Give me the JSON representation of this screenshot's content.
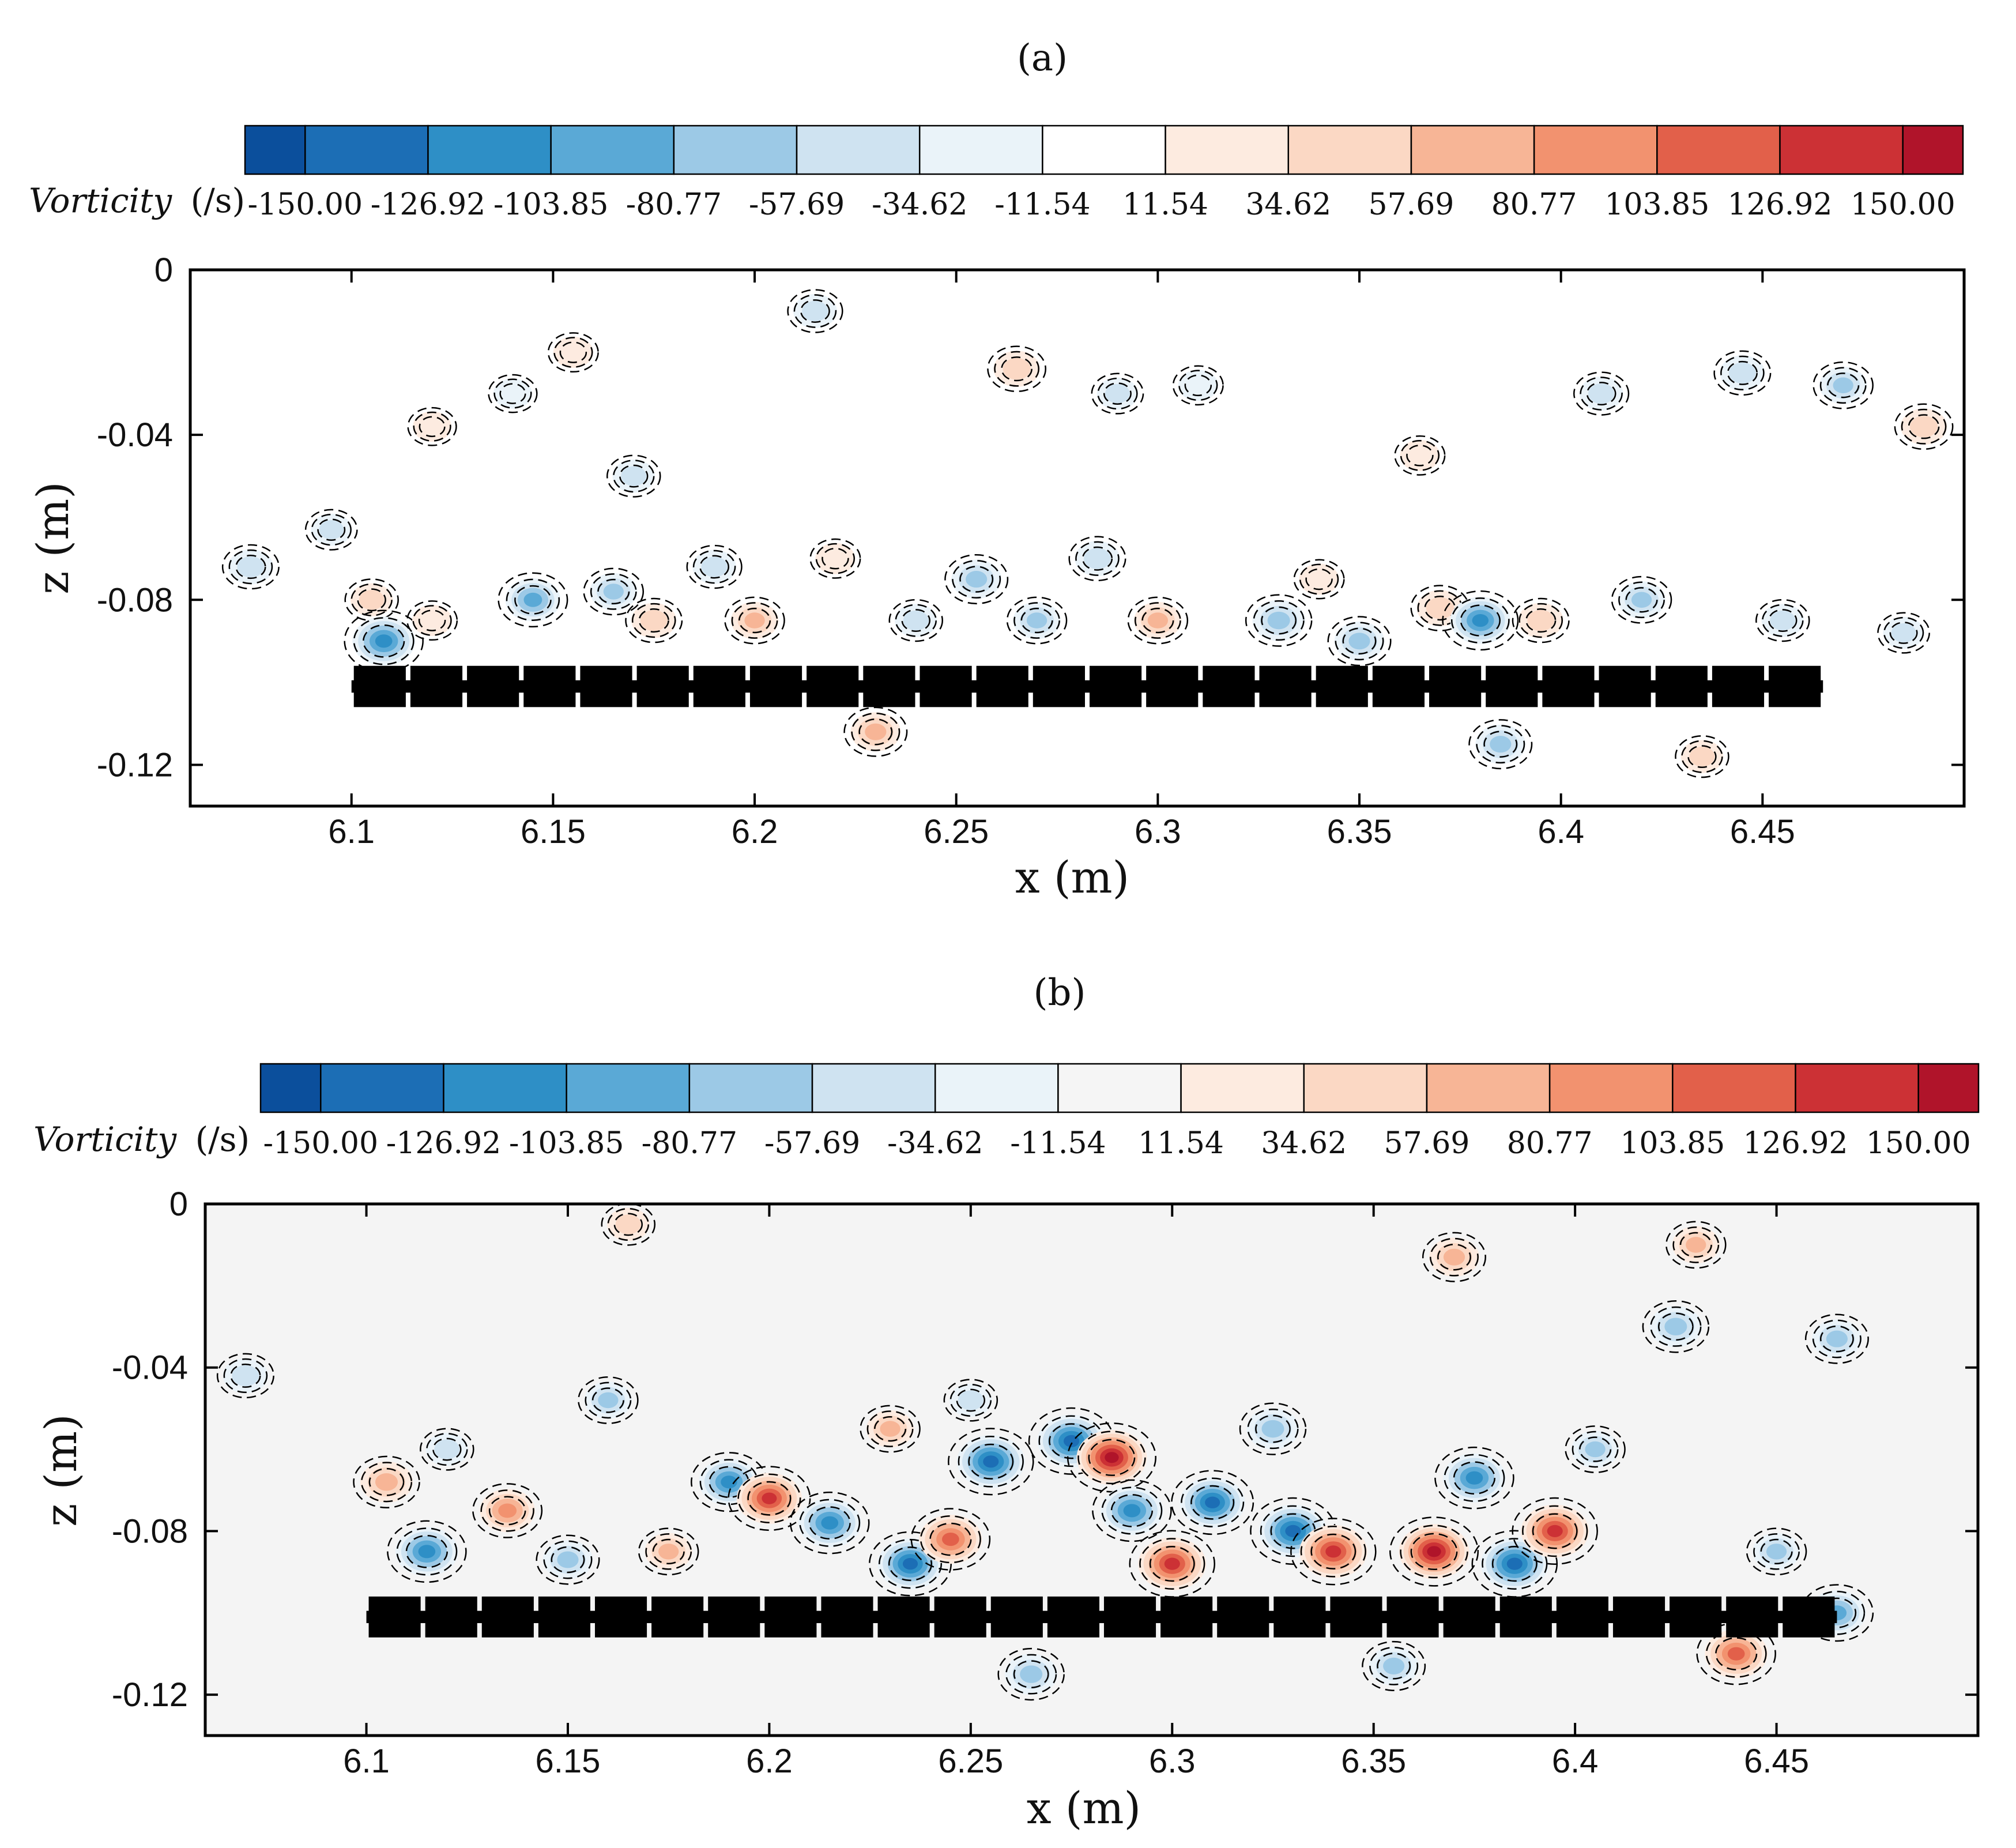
{
  "chart_data": [
    {
      "type": "heatmap",
      "panel_label": "(a)",
      "colorbar": {
        "title": "Vorticity",
        "unit": "(/s)",
        "levels": [
          "-150.00",
          "-126.92",
          "-103.85",
          "-80.77",
          "-57.69",
          "-34.62",
          "-11.54",
          "11.54",
          "34.62",
          "57.69",
          "80.77",
          "103.85",
          "126.92",
          "150.00"
        ],
        "colors": [
          "#0b4f9c",
          "#1c6eb5",
          "#2e8fc6",
          "#5aa9d6",
          "#9cc9e6",
          "#cfe3f1",
          "#eaf3f9",
          "#ffffff",
          "#fdebe0",
          "#fbd8c4",
          "#f7b596",
          "#f2926f",
          "#e2604a",
          "#cc3135",
          "#b0142a"
        ]
      },
      "xlabel": "x (m)",
      "ylabel": "z (m)",
      "xlim": [
        6.06,
        6.5
      ],
      "ylim": [
        -0.13,
        0
      ],
      "xticks": [
        "6.1",
        "6.15",
        "6.2",
        "6.25",
        "6.3",
        "6.35",
        "6.4",
        "6.45"
      ],
      "yticks": [
        "0",
        "-0.04",
        "-0.08",
        "-0.12"
      ],
      "structure": {
        "x_start": 6.1,
        "x_end": 6.465,
        "z_top": -0.096,
        "z_bottom": -0.106
      },
      "vortices": [
        {
          "x": 6.075,
          "z": -0.072,
          "v": -50
        },
        {
          "x": 6.095,
          "z": -0.063,
          "v": -35
        },
        {
          "x": 6.105,
          "z": -0.08,
          "v": 40
        },
        {
          "x": 6.108,
          "z": -0.09,
          "v": -120
        },
        {
          "x": 6.12,
          "z": -0.038,
          "v": 25
        },
        {
          "x": 6.12,
          "z": -0.085,
          "v": 30
        },
        {
          "x": 6.14,
          "z": -0.03,
          "v": -25
        },
        {
          "x": 6.145,
          "z": -0.08,
          "v": -90
        },
        {
          "x": 6.155,
          "z": -0.02,
          "v": 30
        },
        {
          "x": 6.165,
          "z": -0.078,
          "v": -60
        },
        {
          "x": 6.17,
          "z": -0.05,
          "v": -40
        },
        {
          "x": 6.175,
          "z": -0.085,
          "v": 50
        },
        {
          "x": 6.19,
          "z": -0.072,
          "v": -45
        },
        {
          "x": 6.2,
          "z": -0.085,
          "v": 60
        },
        {
          "x": 6.215,
          "z": -0.01,
          "v": -45
        },
        {
          "x": 6.22,
          "z": -0.07,
          "v": 30
        },
        {
          "x": 6.23,
          "z": -0.112,
          "v": 70
        },
        {
          "x": 6.24,
          "z": -0.085,
          "v": -40
        },
        {
          "x": 6.255,
          "z": -0.075,
          "v": -70
        },
        {
          "x": 6.265,
          "z": -0.024,
          "v": 55
        },
        {
          "x": 6.27,
          "z": -0.085,
          "v": -60
        },
        {
          "x": 6.285,
          "z": -0.07,
          "v": -50
        },
        {
          "x": 6.29,
          "z": -0.03,
          "v": -35
        },
        {
          "x": 6.3,
          "z": -0.085,
          "v": 60
        },
        {
          "x": 6.31,
          "z": -0.028,
          "v": -30
        },
        {
          "x": 6.33,
          "z": -0.085,
          "v": -80
        },
        {
          "x": 6.34,
          "z": -0.075,
          "v": 30
        },
        {
          "x": 6.35,
          "z": -0.09,
          "v": -70
        },
        {
          "x": 6.365,
          "z": -0.045,
          "v": 30
        },
        {
          "x": 6.37,
          "z": -0.082,
          "v": 55
        },
        {
          "x": 6.38,
          "z": -0.085,
          "v": -110
        },
        {
          "x": 6.385,
          "z": -0.115,
          "v": -70
        },
        {
          "x": 6.395,
          "z": -0.085,
          "v": 50
        },
        {
          "x": 6.41,
          "z": -0.03,
          "v": -45
        },
        {
          "x": 6.42,
          "z": -0.08,
          "v": -60
        },
        {
          "x": 6.435,
          "z": -0.118,
          "v": 40
        },
        {
          "x": 6.445,
          "z": -0.025,
          "v": -50
        },
        {
          "x": 6.455,
          "z": -0.085,
          "v": -40
        },
        {
          "x": 6.47,
          "z": -0.028,
          "v": -60
        },
        {
          "x": 6.485,
          "z": -0.088,
          "v": -35
        },
        {
          "x": 6.49,
          "z": -0.038,
          "v": 55
        }
      ]
    },
    {
      "type": "heatmap",
      "panel_label": "(b)",
      "colorbar": {
        "title": "Vorticity",
        "unit": "(/s)",
        "levels": [
          "-150.00",
          "-126.92",
          "-103.85",
          "-80.77",
          "-57.69",
          "-34.62",
          "-11.54",
          "11.54",
          "34.62",
          "57.69",
          "80.77",
          "103.85",
          "126.92",
          "150.00"
        ],
        "colors": [
          "#0b4f9c",
          "#1c6eb5",
          "#2e8fc6",
          "#5aa9d6",
          "#9cc9e6",
          "#cfe3f1",
          "#eaf3f9",
          "#f5f5f5",
          "#fdebe0",
          "#fbd8c4",
          "#f7b596",
          "#f2926f",
          "#e2604a",
          "#cc3135",
          "#b0142a"
        ]
      },
      "xlabel": "x (m)",
      "ylabel": "z (m)",
      "xlim": [
        6.06,
        6.5
      ],
      "ylim": [
        -0.13,
        0
      ],
      "xticks": [
        "6.1",
        "6.15",
        "6.2",
        "6.25",
        "6.3",
        "6.35",
        "6.4",
        "6.45"
      ],
      "yticks": [
        "0",
        "-0.04",
        "-0.08",
        "-0.12"
      ],
      "structure": {
        "x_start": 6.1,
        "x_end": 6.465,
        "z_top": -0.096,
        "z_bottom": -0.106
      },
      "vortices": [
        {
          "x": 6.07,
          "z": -0.042,
          "v": -50
        },
        {
          "x": 6.105,
          "z": -0.068,
          "v": 80
        },
        {
          "x": 6.115,
          "z": -0.085,
          "v": -120
        },
        {
          "x": 6.12,
          "z": -0.06,
          "v": -40
        },
        {
          "x": 6.135,
          "z": -0.075,
          "v": 90
        },
        {
          "x": 6.15,
          "z": -0.087,
          "v": -70
        },
        {
          "x": 6.16,
          "z": -0.048,
          "v": -60
        },
        {
          "x": 6.165,
          "z": -0.005,
          "v": 40
        },
        {
          "x": 6.175,
          "z": -0.085,
          "v": 60
        },
        {
          "x": 6.19,
          "z": -0.068,
          "v": -110
        },
        {
          "x": 6.2,
          "z": -0.072,
          "v": 130
        },
        {
          "x": 6.215,
          "z": -0.078,
          "v": -120
        },
        {
          "x": 6.23,
          "z": -0.055,
          "v": 60
        },
        {
          "x": 6.235,
          "z": -0.088,
          "v": -130
        },
        {
          "x": 6.245,
          "z": -0.082,
          "v": 120
        },
        {
          "x": 6.25,
          "z": -0.048,
          "v": -40
        },
        {
          "x": 6.255,
          "z": -0.063,
          "v": -140
        },
        {
          "x": 6.265,
          "z": -0.115,
          "v": -80
        },
        {
          "x": 6.275,
          "z": -0.058,
          "v": -140
        },
        {
          "x": 6.285,
          "z": -0.062,
          "v": 150
        },
        {
          "x": 6.29,
          "z": -0.075,
          "v": -120
        },
        {
          "x": 6.3,
          "z": -0.088,
          "v": 140
        },
        {
          "x": 6.31,
          "z": -0.073,
          "v": -130
        },
        {
          "x": 6.325,
          "z": -0.055,
          "v": -80
        },
        {
          "x": 6.33,
          "z": -0.08,
          "v": -140
        },
        {
          "x": 6.34,
          "z": -0.085,
          "v": 140
        },
        {
          "x": 6.355,
          "z": -0.113,
          "v": -70
        },
        {
          "x": 6.365,
          "z": -0.085,
          "v": 150
        },
        {
          "x": 6.37,
          "z": -0.013,
          "v": 70
        },
        {
          "x": 6.375,
          "z": -0.067,
          "v": -120
        },
        {
          "x": 6.385,
          "z": -0.088,
          "v": -140
        },
        {
          "x": 6.395,
          "z": -0.08,
          "v": 140
        },
        {
          "x": 6.405,
          "z": -0.06,
          "v": -60
        },
        {
          "x": 6.425,
          "z": -0.03,
          "v": -80
        },
        {
          "x": 6.43,
          "z": -0.01,
          "v": 60
        },
        {
          "x": 6.44,
          "z": -0.11,
          "v": 120
        },
        {
          "x": 6.45,
          "z": -0.085,
          "v": -60
        },
        {
          "x": 6.465,
          "z": -0.033,
          "v": -70
        },
        {
          "x": 6.465,
          "z": -0.1,
          "v": -100
        }
      ]
    }
  ]
}
